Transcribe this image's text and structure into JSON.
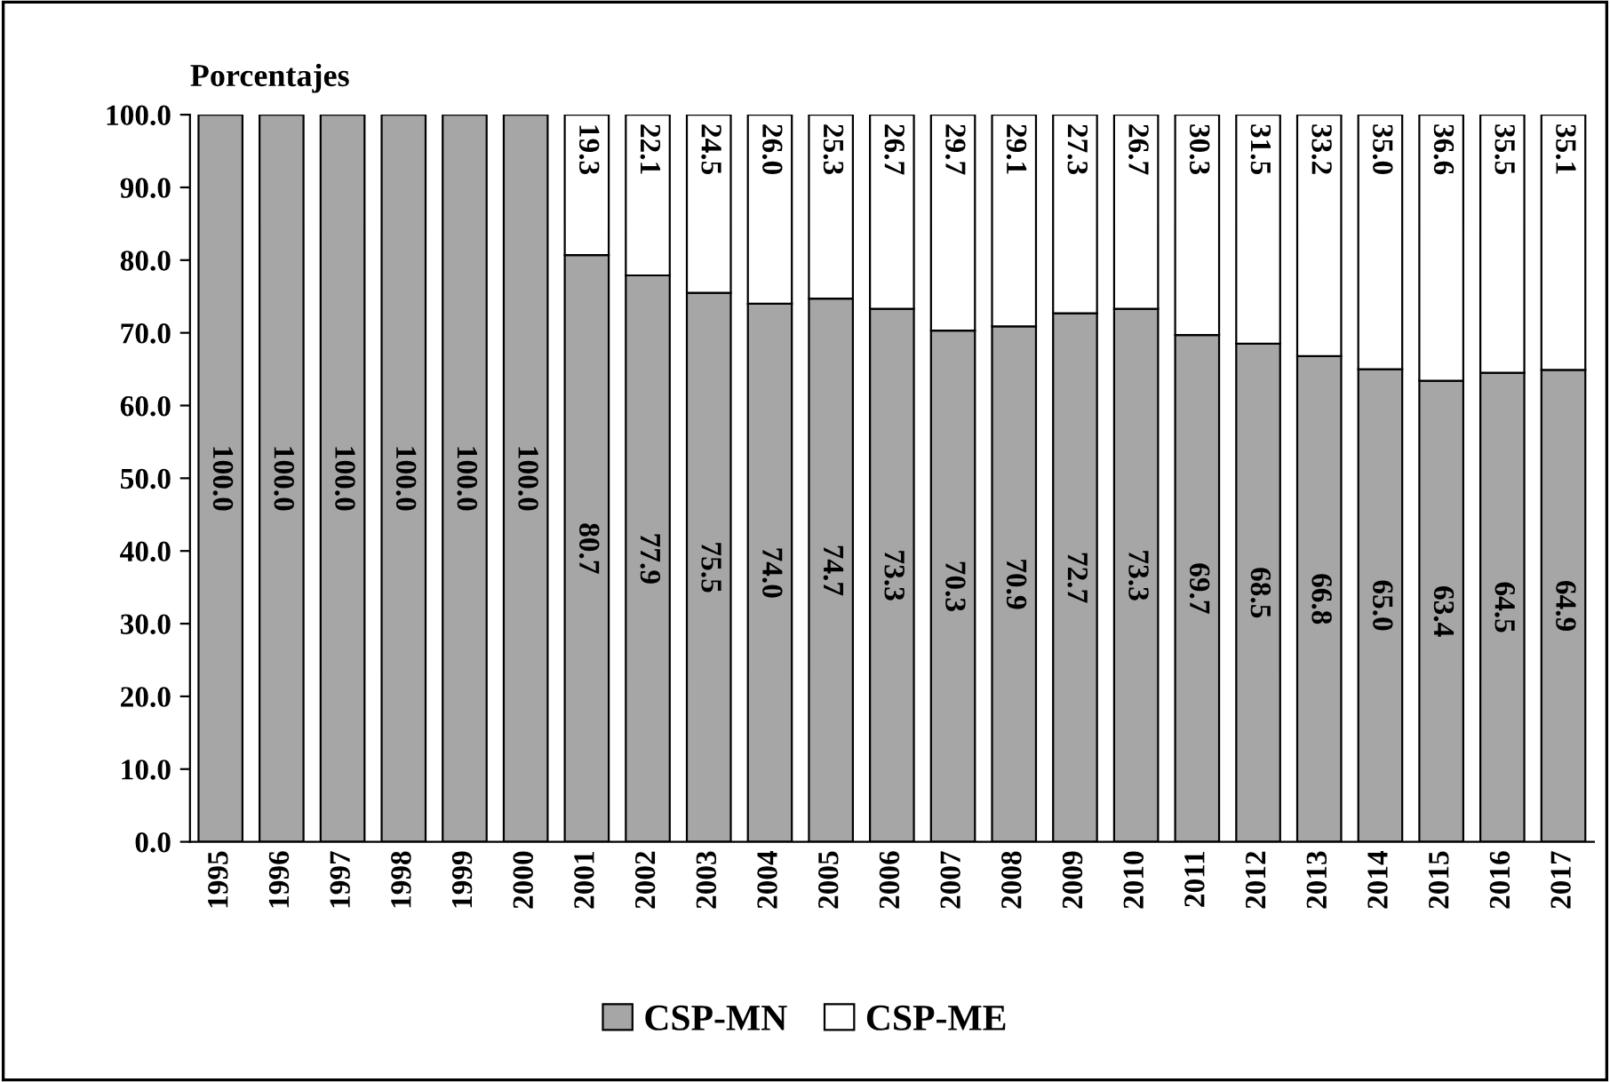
{
  "chart_data": {
    "type": "bar",
    "stacked": true,
    "ylabel": "Porcentajes",
    "categories": [
      "1995",
      "1996",
      "1997",
      "1998",
      "1999",
      "2000",
      "2001",
      "2002",
      "2003",
      "2004",
      "2005",
      "2006",
      "2007",
      "2008",
      "2009",
      "2010",
      "2011",
      "2012",
      "2013",
      "2014",
      "2015",
      "2016",
      "2017"
    ],
    "series": [
      {
        "name": "CSP-MN",
        "color": "#a6a6a6",
        "values": [
          100.0,
          100.0,
          100.0,
          100.0,
          100.0,
          100.0,
          80.7,
          77.9,
          75.5,
          74.0,
          74.7,
          73.3,
          70.3,
          70.9,
          72.7,
          73.3,
          69.7,
          68.5,
          66.8,
          65.0,
          63.4,
          64.5,
          64.9
        ],
        "value_labels": [
          "100.0",
          "100.0",
          "100.0",
          "100.0",
          "100.0",
          "100.0",
          "80.7",
          "77.9",
          "75.5",
          "74.0",
          "74.7",
          "73.3",
          "70.3",
          "70.9",
          "72.7",
          "73.3",
          "69.7",
          "68.5",
          "66.8",
          "65.0",
          "63.4",
          "64.5",
          "64.9"
        ]
      },
      {
        "name": "CSP-ME",
        "color": "#ffffff",
        "values": [
          null,
          null,
          null,
          null,
          null,
          null,
          19.3,
          22.1,
          24.5,
          26.0,
          25.3,
          26.7,
          29.7,
          29.1,
          27.3,
          26.7,
          30.3,
          31.5,
          33.2,
          35.0,
          36.6,
          35.5,
          35.1
        ],
        "value_labels": [
          null,
          null,
          null,
          null,
          null,
          null,
          "19.3",
          "22.1",
          "24.5",
          "26.0",
          "25.3",
          "26.7",
          "29.7",
          "29.1",
          "27.3",
          "26.7",
          "30.3",
          "31.5",
          "33.2",
          "35.0",
          "36.6",
          "35.5",
          "35.1"
        ]
      }
    ],
    "ylim": [
      0,
      100
    ],
    "yticks": [
      {
        "value": 0,
        "label": "0.0"
      },
      {
        "value": 10,
        "label": "10.0"
      },
      {
        "value": 20,
        "label": "20.0"
      },
      {
        "value": 30,
        "label": "30.0"
      },
      {
        "value": 40,
        "label": "40.0"
      },
      {
        "value": 50,
        "label": "50.0"
      },
      {
        "value": 60,
        "label": "60.0"
      },
      {
        "value": 70,
        "label": "70.0"
      },
      {
        "value": 80,
        "label": "80.0"
      },
      {
        "value": 90,
        "label": "90.0"
      },
      {
        "value": 100,
        "label": "100.0"
      }
    ],
    "grid": false,
    "legend": "bottom"
  }
}
